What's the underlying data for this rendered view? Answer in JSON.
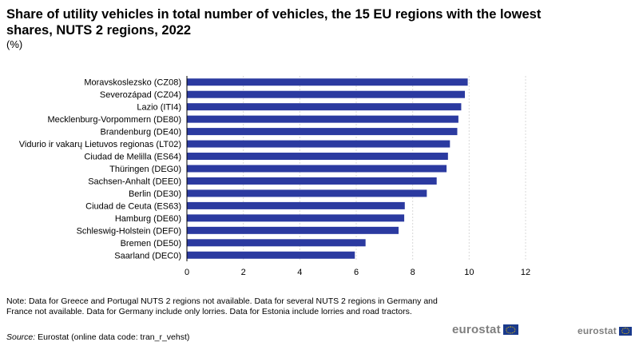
{
  "title": "Share of utility vehicles in total number of vehicles, the 15 EU regions with the lowest shares, NUTS 2 regions, 2022",
  "unit": "(%)",
  "note": "Note: Data for Greece and Portugal NUTS 2 regions not available. Data for several NUTS 2 regions in Germany and France not available. Data for Germany include only lorries. Data for Estonia include lorries and road tractors.",
  "source": {
    "label": "Source:",
    "text": "Eurostat (online data code: tran_r_vehst)"
  },
  "logo": {
    "main": "eurostat",
    "small": "eurostat",
    "icon": "eu-flag-icon"
  },
  "colors": {
    "bar": "#2b3aa0",
    "grid": "#d9d9d9",
    "axis": "#000000",
    "logo_text": "#7f7f7f",
    "flag": "#1a3a8c"
  },
  "chart_data": {
    "type": "bar",
    "orientation": "horizontal",
    "categories": [
      "Moravskoslezsko (CZ08)",
      "Severozápad (CZ04)",
      "Lazio (ITI4)",
      "Mecklenburg-Vorpommern (DE80)",
      "Brandenburg (DE40)",
      "Vidurio ir vakarų Lietuvos regionas (LT02)",
      "Ciudad de Melilla (ES64)",
      "Thüringen (DEG0)",
      "Sachsen-Anhalt (DEE0)",
      "Berlin (DE30)",
      "Ciudad de Ceuta (ES63)",
      "Hamburg (DE60)",
      "Schleswig-Holstein (DEF0)",
      "Bremen (DE50)",
      "Saarland (DEC0)"
    ],
    "values": [
      9.95,
      9.85,
      9.72,
      9.62,
      9.58,
      9.32,
      9.25,
      9.2,
      8.85,
      8.5,
      7.72,
      7.7,
      7.5,
      6.33,
      5.95
    ],
    "xlim": [
      0,
      12
    ],
    "xticks": [
      0,
      2,
      4,
      6,
      8,
      10,
      12
    ],
    "grid": true,
    "xlabel": "",
    "ylabel": ""
  }
}
